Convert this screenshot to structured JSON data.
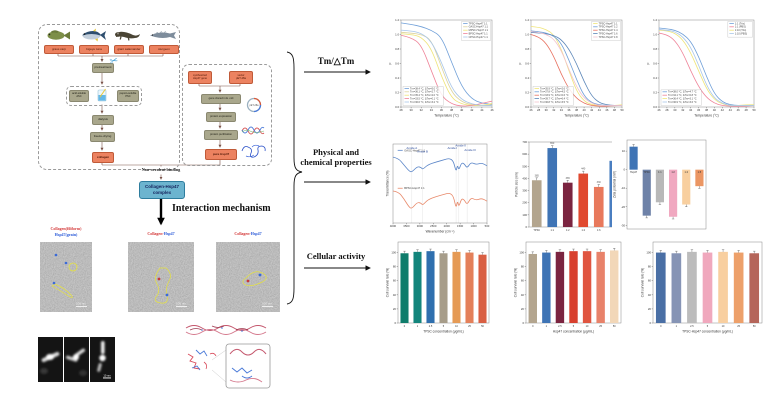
{
  "figure": {
    "icons": {
      "scissors": "✂"
    },
    "colors": {
      "accent_orange": "#ec8260",
      "accent_olive": "#a9a78c",
      "complex_blue": "#6cb4cf"
    },
    "flowchart": {
      "fish": [
        {
          "name": "grass carp"
        },
        {
          "name": "bigeye tuna"
        },
        {
          "name": "giant salamander"
        },
        {
          "name": "sturgeon"
        }
      ],
      "pretreatment": "pretreatment",
      "acid_line1": "acid-soluble",
      "acid_line2": "ASC",
      "pepsin_line1": "pepsin-soluble",
      "pepsin_line2": "PSC",
      "dialysis": "dialysis",
      "freeze": "freeze-drying",
      "collagen": "collagen",
      "gene_line1": "synthesized",
      "gene_line2": "Hsp47 gene",
      "vector_line1": "vector",
      "vector_line2": "pET-28a",
      "plasmid": "pET-28a",
      "clone": "gene cloned in E. coli",
      "expression": "protein expression",
      "purification": "protein purification",
      "pure": "pure Hsp47",
      "binding": "Non-covalent binding",
      "complex_line1": "Collagen-Hsp47",
      "complex_line2": "complex",
      "interaction": "Interaction mechanism"
    },
    "tem": {
      "label1_line1": "Collagen(filiform)",
      "label1_line2": "Hsp47(grain)",
      "label2_part1": "Collagen-",
      "label2_part2": "Hsp47",
      "label3_part1": "Collagen-",
      "label3_part2": "Hsp47",
      "scale": "100 nm"
    },
    "em": {
      "scale": "10 nm"
    },
    "sections": {
      "tm": "Tm/△Tm",
      "phys_line1": "Physical and",
      "phys_line2": "chemical properties",
      "cell": "Cellular activity"
    }
  },
  "chart_data": [
    {
      "name": "melting-curves-species",
      "type": "line",
      "xlabel": "Temperature (°C)",
      "ylabel": "F",
      "xlim": [
        28,
        46
      ],
      "ylim": [
        0,
        1.2
      ],
      "xticks": [
        "28",
        "30",
        "32",
        "34",
        "36",
        "38",
        "40",
        "42",
        "44",
        "46"
      ],
      "yticks": [
        "0.0",
        "0.2",
        "0.4",
        "0.6",
        "0.8",
        "1.0",
        "1.2"
      ],
      "x": [
        28,
        30,
        32,
        34,
        36,
        38,
        40,
        42,
        44,
        46
      ],
      "margin": {
        "l": 13,
        "b": 11
      },
      "series": [
        {
          "label": "TPSC-Hsp47 1:1",
          "color": "#6f9fd8",
          "y": [
            1.16,
            1.14,
            1.11,
            1.06,
            0.97,
            0.62,
            0.28,
            0.11,
            0.05,
            0.04
          ]
        },
        {
          "label": "GASC-Hsp47 1:1",
          "color": "#ddd49e",
          "y": [
            1.03,
            1.02,
            1.0,
            0.93,
            0.55,
            0.2,
            0.07,
            0.03,
            0.02,
            0.03
          ]
        },
        {
          "label": "MPSC-Hsp47 1:1",
          "color": "#efe477",
          "y": [
            1.01,
            1.0,
            0.97,
            0.81,
            0.42,
            0.12,
            0.04,
            0.02,
            0.02,
            0.05
          ]
        },
        {
          "label": "BPSC-Hsp47 1:1",
          "color": "#ef8499",
          "y": [
            0.99,
            0.96,
            0.86,
            0.5,
            0.15,
            0.04,
            0.01,
            0.02,
            0.05,
            0.08
          ]
        },
        {
          "label": "CPSC-Hsp47 1:1",
          "color": "#a9c6e8",
          "y": [
            1.06,
            1.05,
            1.02,
            0.91,
            0.62,
            0.26,
            0.1,
            0.04,
            0.02,
            0.02
          ]
        }
      ],
      "legend": {
        "pos": "tr"
      },
      "legend2": {
        "pos": "bl",
        "items": [
          {
            "color": "#6f9fd8",
            "label": "Tm=38.4 °C, ΔTm=5.0 °C"
          },
          {
            "color": "#ddd49e",
            "label": "Tm=36.1 °C, ΔTm=2.7 °C"
          },
          {
            "color": "#efe477",
            "label": "Tm=35.4 °C, ΔTm=2.0 °C"
          },
          {
            "color": "#ef8499",
            "label": "Tm=33.5 °C, ΔTm=0.1 °C"
          },
          {
            "color": "#a9c6e8",
            "label": "Tm=36.6 °C, ΔTm=3.2 °C"
          }
        ]
      }
    },
    {
      "name": "melting-curves-ratio",
      "type": "line",
      "xlabel": "Temperature (°C)",
      "ylabel": "F",
      "xlim": [
        26,
        50
      ],
      "ylim": [
        0,
        1.2
      ],
      "xticks": [
        "26",
        "28",
        "30",
        "32",
        "34",
        "36",
        "38",
        "40",
        "42",
        "44",
        "46",
        "48",
        "50"
      ],
      "yticks": [
        "0.0",
        "0.2",
        "0.4",
        "0.6",
        "0.8",
        "1.0",
        "1.2"
      ],
      "x": [
        26,
        28,
        30,
        32,
        34,
        36,
        38,
        40,
        42,
        44,
        46,
        48,
        50
      ],
      "margin": {
        "l": 13,
        "b": 11
      },
      "series": [
        {
          "label": "TPSC-Hsp47 1:1",
          "color": "#efe477",
          "y": [
            1.11,
            1.1,
            1.07,
            1.0,
            0.8,
            0.5,
            0.22,
            0.08,
            0.03,
            0.02,
            0.02,
            0.02,
            0.03
          ]
        },
        {
          "label": "TPSC-Hsp47 1:2",
          "color": "#6f9fd8",
          "y": [
            1.05,
            1.04,
            1.02,
            0.98,
            0.88,
            0.65,
            0.38,
            0.15,
            0.06,
            0.03,
            0.02,
            0.02,
            0.02
          ]
        },
        {
          "label": "TPSC-Hsp47 1:4",
          "color": "#e8705f",
          "y": [
            1.0,
            0.97,
            0.88,
            0.7,
            0.45,
            0.25,
            0.12,
            0.05,
            0.02,
            0.01,
            0.01,
            0.02,
            0.02
          ]
        },
        {
          "label": "TPSC-Hsp47 1:6",
          "color": "#5b86b8",
          "y": [
            1.03,
            1.02,
            1.01,
            0.99,
            0.93,
            0.8,
            0.6,
            0.35,
            0.15,
            0.06,
            0.03,
            0.02,
            0.02
          ]
        },
        {
          "label": "TPSC-Hsp47 1:8",
          "color": "#f3c3cd",
          "y": [
            1.04,
            1.03,
            1.0,
            0.94,
            0.78,
            0.52,
            0.28,
            0.12,
            0.05,
            0.02,
            0.02,
            0.02,
            0.02
          ]
        }
      ],
      "legend": {
        "pos": "tr"
      },
      "legend2": {
        "pos": "bl",
        "items": [
          {
            "color": "#efe477",
            "label": "Tm=35.9 °C, ΔTm=2.6 °C"
          },
          {
            "color": "#6f9fd8",
            "label": "Tm=37.8 °C, ΔTm=4.5 °C"
          },
          {
            "color": "#e8705f",
            "label": "Tm=33.9 °C, ΔTm=0.6 °C"
          },
          {
            "color": "#5b86b8",
            "label": "Tm=39.7 °C, ΔTm=6.4 °C"
          },
          {
            "color": "#f3c3cd",
            "label": "Tm=36.8 °C, ΔTm=3.5 °C"
          }
        ]
      }
    },
    {
      "name": "melting-curves-buffer",
      "type": "line",
      "xlabel": "Temperature (°C)",
      "ylabel": "F",
      "xlim": [
        26,
        50
      ],
      "ylim": [
        0,
        1.2
      ],
      "xticks": [
        "26",
        "28",
        "30",
        "32",
        "34",
        "36",
        "38",
        "40",
        "42",
        "44",
        "46",
        "48",
        "50"
      ],
      "yticks": [
        "0.0",
        "0.2",
        "0.4",
        "0.6",
        "0.8",
        "1.0",
        "1.2"
      ],
      "x": [
        26,
        28,
        30,
        32,
        34,
        36,
        38,
        40,
        42,
        44,
        46,
        48,
        50
      ],
      "margin": {
        "l": 13,
        "b": 11
      },
      "series": [
        {
          "label": "1:1  (Tris)",
          "color": "#6f9fd8",
          "y": [
            1.09,
            1.08,
            1.06,
            1.01,
            0.91,
            0.7,
            0.42,
            0.18,
            0.07,
            0.03,
            0.02,
            0.02,
            0.02
          ]
        },
        {
          "label": "1:1  (PBS)",
          "color": "#ef8499",
          "y": [
            1.02,
            1.0,
            0.92,
            0.75,
            0.5,
            0.28,
            0.13,
            0.05,
            0.02,
            0.01,
            0.01,
            0.01,
            0.02
          ]
        },
        {
          "label": "1:10 (Tris)",
          "color": "#efe477",
          "y": [
            1.06,
            1.05,
            1.02,
            0.93,
            0.75,
            0.5,
            0.25,
            0.1,
            0.04,
            0.02,
            0.02,
            0.03,
            0.03
          ]
        },
        {
          "label": "1:10 (PBS)",
          "color": "#a9c6e8",
          "y": [
            1.07,
            1.06,
            1.04,
            0.97,
            0.83,
            0.58,
            0.3,
            0.12,
            0.05,
            0.02,
            0.02,
            0.02,
            0.02
          ]
        }
      ],
      "legend": {
        "pos": "tr"
      },
      "legend2": {
        "pos": "bl",
        "items": [
          {
            "color": "#6f9fd8",
            "label": "Tm=38.0 °C, ΔTm=4.7 °C"
          },
          {
            "color": "#ef8499",
            "label": "Tm=34.1 °C, ΔTm=0.8 °C"
          },
          {
            "color": "#efe477",
            "label": "Tm=36.4 °C, ΔTm=3.1 °C"
          },
          {
            "color": "#a9c6e8",
            "label": "Tm=36.9 °C, ΔTm=3.6 °C"
          }
        ]
      }
    },
    {
      "name": "ftir-spectra",
      "type": "line",
      "xlabel": "Wavenumber (cm⁻¹)",
      "ylabel": "Transmittance (%)",
      "xlim": [
        4000,
        500
      ],
      "ylim": [
        0,
        2.1
      ],
      "xticks": [
        "4000",
        "3500",
        "3000",
        "2500",
        "2000",
        "1500",
        "1000",
        "500"
      ],
      "yticks": [],
      "x": [
        4000,
        3800,
        3600,
        3400,
        3300,
        3100,
        2950,
        2900,
        2700,
        2400,
        2100,
        1900,
        1750,
        1650,
        1600,
        1550,
        1450,
        1350,
        1240,
        1100,
        900,
        700,
        500
      ],
      "margin": {
        "l": 8,
        "b": 11
      },
      "series": [
        {
          "label": "GASC-Hsp47 1:1",
          "color": "#5b86c8",
          "y": [
            1.75,
            1.72,
            1.55,
            1.38,
            1.35,
            1.5,
            1.48,
            1.42,
            1.55,
            1.62,
            1.68,
            1.72,
            1.65,
            1.35,
            1.55,
            1.4,
            1.6,
            1.58,
            1.45,
            1.62,
            1.55,
            1.6,
            1.52
          ]
        },
        {
          "label": "BPSC-Hsp47 1:1",
          "color": "#e8896a",
          "y": [
            0.85,
            0.83,
            0.65,
            0.42,
            0.38,
            0.55,
            0.53,
            0.47,
            0.62,
            0.7,
            0.76,
            0.8,
            0.72,
            0.38,
            0.6,
            0.42,
            0.65,
            0.62,
            0.48,
            0.68,
            0.6,
            0.66,
            0.58
          ]
        }
      ],
      "legend_inline": [
        {
          "fx": 0.05,
          "fy": 0.08,
          "color": "#5b86c8",
          "label": "GASC-Hsp47 1:1"
        },
        {
          "fx": 0.05,
          "fy": 0.56,
          "color": "#e8896a",
          "label": "BPSC-Hsp47 1:1"
        }
      ],
      "guides": [
        3300,
        2900,
        1650,
        1550,
        1240
      ],
      "annotations": [
        {
          "x": 3300,
          "y": 1.97,
          "t": "Amide A",
          "c": "#2a4a9a"
        },
        {
          "x": 2900,
          "y": 1.88,
          "t": "Amide B",
          "c": "#2a4a9a"
        },
        {
          "x": 1790,
          "y": 1.97,
          "t": "Amide I",
          "c": "#2a4a9a"
        },
        {
          "x": 1480,
          "y": 2.03,
          "t": "Amide II",
          "c": "#2a4a9a"
        },
        {
          "x": 1130,
          "y": 1.92,
          "t": "Amide III",
          "c": "#2a4a9a"
        }
      ]
    },
    {
      "name": "particle-size",
      "type": "bar",
      "ylabel": "Particle size (nm)",
      "xlabel": "",
      "ylim": [
        0,
        700
      ],
      "yticks": [
        "0",
        "100",
        "200",
        "300",
        "400",
        "500",
        "600",
        "700"
      ],
      "categories": [
        "TPSC",
        "1:1",
        "1:2",
        "1:4",
        "1:6",
        "1:8"
      ],
      "values": [
        385,
        650,
        365,
        440,
        330,
        545
      ],
      "colors": [
        "#b3a58e",
        "#3f74b5",
        "#7b2440",
        "#e0492f",
        "#e8795c",
        "#4a7ec0"
      ],
      "err": 20,
      "show_values": true,
      "margin": {
        "l": 15,
        "b": 7
      }
    },
    {
      "name": "zeta-potential",
      "type": "bar",
      "ylabel": "Zeta potential (mV)",
      "xlabel": "",
      "ylim": [
        -32,
        16
      ],
      "yticks": [
        "-30",
        "-20",
        "-10",
        "0",
        "10"
      ],
      "categories": [
        "Hsp47",
        "TPSC",
        "1:1",
        "1:2",
        "1:4",
        "1:8"
      ],
      "values": [
        12.4,
        -24.8,
        -17.6,
        -25.4,
        -18.8,
        -8.9
      ],
      "colors": [
        "#3f74b5",
        "#6e82a8",
        "#b8b8b8",
        "#f0a8c0",
        "#f8cf9f",
        "#eb9663"
      ],
      "err": 1.2,
      "cats_at_zero": true,
      "margin": {
        "l": 15,
        "b": 5
      }
    },
    {
      "name": "cell-survival-tpsc",
      "type": "bar",
      "ylabel": "Cell survival rate (%)",
      "xlabel": "TPSC concentration (μg/mL)",
      "ylim": [
        0,
        115
      ],
      "yticks": [
        "0",
        "20",
        "40",
        "60",
        "80",
        "100"
      ],
      "categories": [
        "0",
        "1",
        "2.5",
        "5",
        "10",
        "25",
        "50"
      ],
      "values": [
        99,
        101,
        102,
        99,
        101,
        100,
        97
      ],
      "colors": [
        "#0e7c6b",
        "#13857c",
        "#2f6fae",
        "#a79d8a",
        "#e59a55",
        "#e4805a",
        "#d95f43"
      ],
      "err": 3,
      "margin": {
        "l": 13,
        "b": 11
      }
    },
    {
      "name": "cell-survival-hsp47",
      "type": "bar",
      "ylabel": "Cell survival rate (%)",
      "xlabel": "Hsp47 concentration (μg/mL)",
      "ylim": [
        0,
        115
      ],
      "yticks": [
        "0",
        "20",
        "40",
        "60",
        "80",
        "100"
      ],
      "categories": [
        "0",
        "1",
        "2.5",
        "5",
        "10",
        "25",
        "50"
      ],
      "values": [
        98,
        100,
        101,
        102,
        102,
        101,
        103
      ],
      "colors": [
        "#b3a58e",
        "#3f74b5",
        "#7b2440",
        "#d8402e",
        "#e05540",
        "#e8826a",
        "#f2d7b8"
      ],
      "err": 3,
      "margin": {
        "l": 13,
        "b": 11
      }
    },
    {
      "name": "cell-survival-complex",
      "type": "bar",
      "ylabel": "Cell survival rate (%)",
      "xlabel": "TPSC-Hsp47 concentration (μg/mL)",
      "ylim": [
        0,
        115
      ],
      "yticks": [
        "0",
        "20",
        "40",
        "60",
        "80",
        "100"
      ],
      "categories": [
        "0",
        "1",
        "2.5",
        "5",
        "10",
        "25",
        "50"
      ],
      "values": [
        100,
        99,
        101,
        100,
        101,
        100,
        99
      ],
      "colors": [
        "#4a6fa5",
        "#8694b5",
        "#bcbcbc",
        "#f0a8bd",
        "#f8cfa0",
        "#eda06a",
        "#b5655a"
      ],
      "err": 3,
      "margin": {
        "l": 13,
        "b": 11
      }
    }
  ]
}
